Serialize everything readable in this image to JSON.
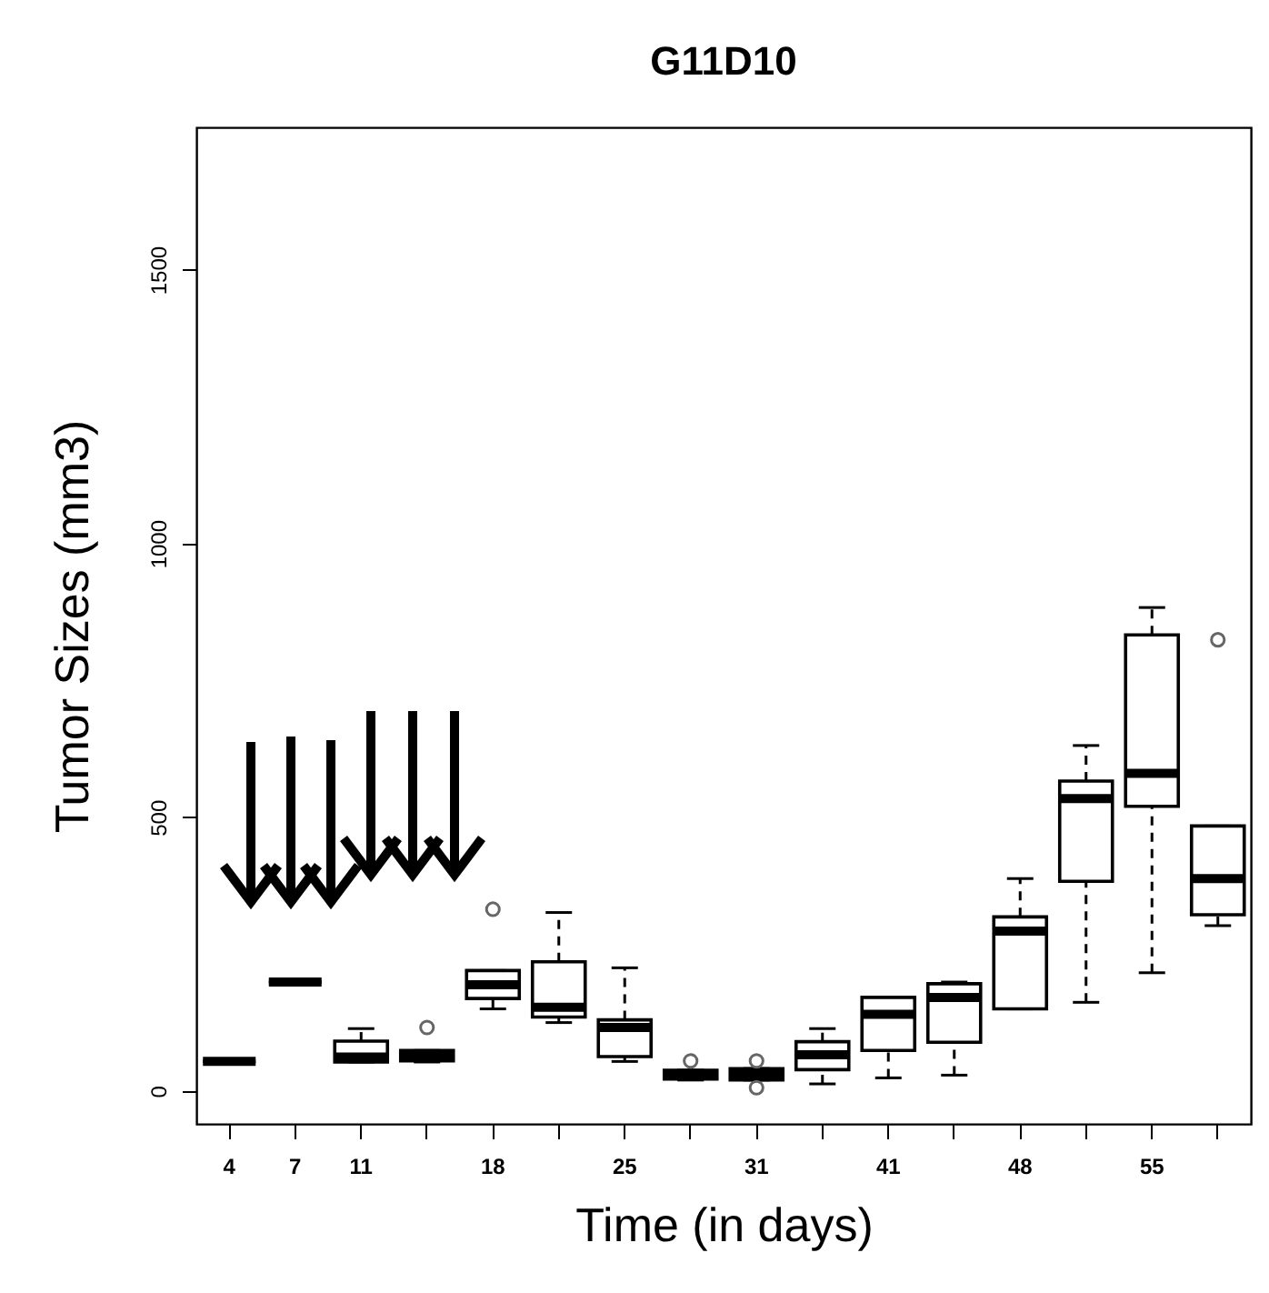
{
  "chart_data": {
    "type": "box",
    "title": "G11D10",
    "xlabel": "Time (in days)",
    "ylabel": "Tumor Sizes (mm3)",
    "categories": [
      "4",
      "7",
      "11",
      null,
      "18",
      null,
      "25",
      null,
      "31",
      null,
      "41",
      null,
      "48",
      null,
      "55",
      null
    ],
    "boxes": [
      {
        "low": 54,
        "q1": 54,
        "median": 54,
        "q3": 54,
        "high": 54
      },
      {
        "low": 199,
        "q1": 199,
        "median": 199,
        "q3": 199,
        "high": 199
      },
      {
        "low": 53,
        "q1": 53,
        "median": 62,
        "q3": 91,
        "high": 114
      },
      {
        "low": 53,
        "q1": 55,
        "median": 65,
        "q3": 74,
        "high": 74,
        "outliers": [
          116
        ]
      },
      {
        "low": 150,
        "q1": 169,
        "median": 194,
        "q3": 220,
        "high": 220,
        "outliers": [
          332
        ]
      },
      {
        "low": 125,
        "q1": 135,
        "median": 153,
        "q3": 236,
        "high": 326
      },
      {
        "low": 54,
        "q1": 63,
        "median": 116,
        "q3": 130,
        "high": 225
      },
      {
        "low": 20,
        "q1": 22,
        "median": 30,
        "q3": 38,
        "high": 38,
        "outliers": [
          55
        ]
      },
      {
        "low": 20,
        "q1": 20,
        "median": 31,
        "q3": 41,
        "high": 41,
        "outliers": [
          55,
          6
        ]
      },
      {
        "low": 13,
        "q1": 39,
        "median": 66,
        "q3": 90,
        "high": 114
      },
      {
        "low": 24,
        "q1": 74,
        "median": 140,
        "q3": 171,
        "high": 171
      },
      {
        "low": 29,
        "q1": 89,
        "median": 171,
        "q3": 196,
        "high": 199
      },
      {
        "low": 150,
        "q1": 150,
        "median": 292,
        "q3": 318,
        "high": 388
      },
      {
        "low": 162,
        "q1": 383,
        "median": 534,
        "q3": 566,
        "high": 631
      },
      {
        "low": 216,
        "q1": 520,
        "median": 580,
        "q3": 833,
        "high": 883
      },
      {
        "low": 302,
        "q1": 322,
        "median": 388,
        "q3": 484,
        "high": 484,
        "outliers": [
          824
        ]
      }
    ],
    "ylim": [
      -60,
      1760
    ],
    "yticks": [
      0,
      500,
      1000,
      1500
    ],
    "grid": false
  }
}
